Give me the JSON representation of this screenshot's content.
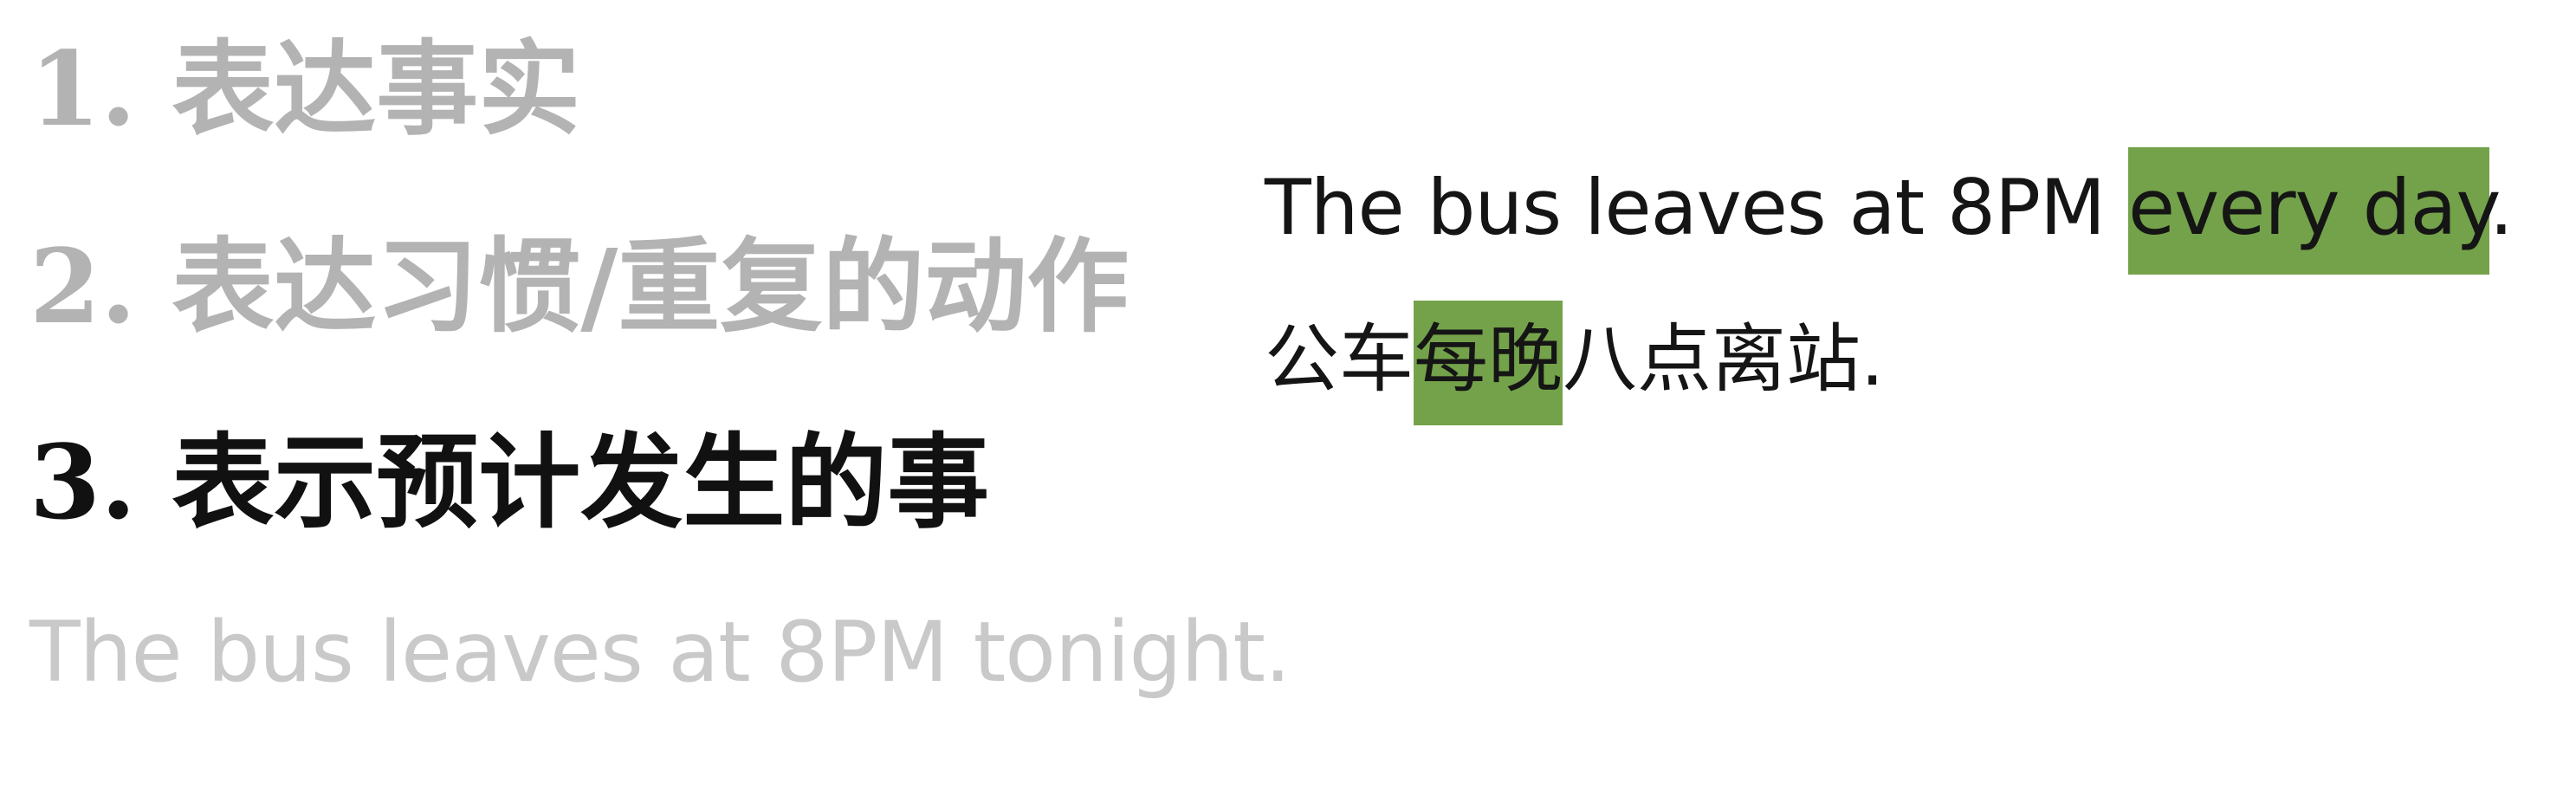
{
  "list": [
    {
      "text": "1. 表达事实"
    },
    {
      "text": "2. 表达习惯/重复的动作"
    },
    {
      "text": "3. 表示预计发生的事"
    }
  ],
  "muted_example": "The bus leaves at 8PM tonight.",
  "example_en": {
    "before": "The bus leaves at 8PM ",
    "highlight": "every day",
    "after": "."
  },
  "example_zh": {
    "before": "公车",
    "highlight": "每晚",
    "after": "八点离站."
  },
  "colors": {
    "highlight": "#74a24a",
    "muted_text": "#b3b3b3",
    "active_text": "#111111"
  }
}
